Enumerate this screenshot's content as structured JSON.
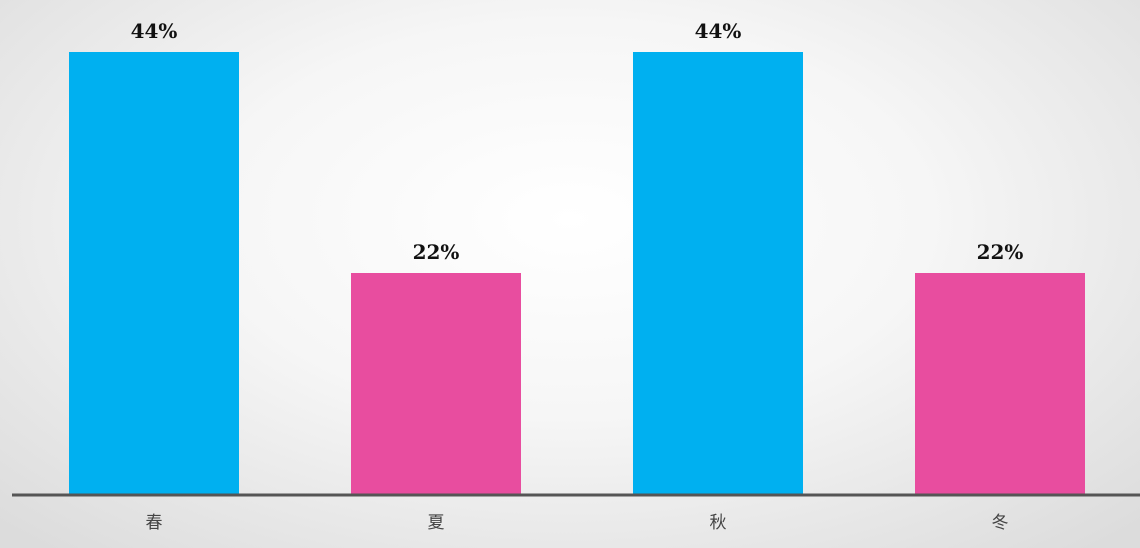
{
  "chart_data": {
    "type": "bar",
    "categories": [
      "春",
      "夏",
      "秋",
      "冬"
    ],
    "values": [
      44,
      22,
      44,
      22
    ],
    "data_labels": [
      "44%",
      "22%",
      "44%",
      "22%"
    ],
    "unit": "%",
    "ylim": [
      0,
      44
    ],
    "grid": false,
    "legend": "none",
    "bar_colors": [
      "#00b0f0",
      "#e84d9f",
      "#00b0f0",
      "#e84d9f"
    ],
    "axis_color": "#555555"
  }
}
